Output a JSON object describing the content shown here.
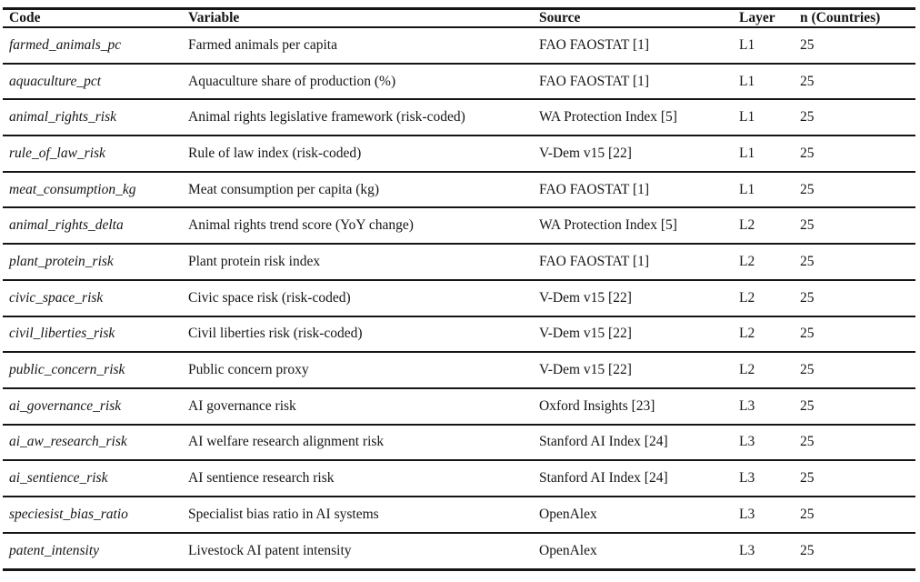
{
  "table": {
    "columns": [
      "Code",
      "Variable",
      "Source",
      "Layer",
      "n (Countries)"
    ],
    "rows": [
      {
        "code": "farmed_animals_pc",
        "variable": "Farmed animals per capita",
        "source": "FAO FAOSTAT [1]",
        "layer": "L1",
        "n": "25"
      },
      {
        "code": "aquaculture_pct",
        "variable": "Aquaculture share of production (%)",
        "source": "FAO FAOSTAT [1]",
        "layer": "L1",
        "n": "25"
      },
      {
        "code": "animal_rights_risk",
        "variable": "Animal rights legislative framework (risk-coded)",
        "source": "WA Protection Index [5]",
        "layer": "L1",
        "n": "25"
      },
      {
        "code": "rule_of_law_risk",
        "variable": "Rule of law index (risk-coded)",
        "source": "V-Dem v15 [22]",
        "layer": "L1",
        "n": "25"
      },
      {
        "code": "meat_consumption_kg",
        "variable": "Meat consumption per capita (kg)",
        "source": "FAO FAOSTAT [1]",
        "layer": "L1",
        "n": "25"
      },
      {
        "code": "animal_rights_delta",
        "variable": "Animal rights trend score (YoY change)",
        "source": "WA Protection Index [5]",
        "layer": "L2",
        "n": "25"
      },
      {
        "code": "plant_protein_risk",
        "variable": "Plant protein risk index",
        "source": "FAO FAOSTAT [1]",
        "layer": "L2",
        "n": "25"
      },
      {
        "code": "civic_space_risk",
        "variable": "Civic space risk (risk-coded)",
        "source": "V-Dem v15 [22]",
        "layer": "L2",
        "n": "25"
      },
      {
        "code": "civil_liberties_risk",
        "variable": "Civil liberties risk (risk-coded)",
        "source": "V-Dem v15 [22]",
        "layer": "L2",
        "n": "25"
      },
      {
        "code": "public_concern_risk",
        "variable": "Public concern proxy",
        "source": "V-Dem v15 [22]",
        "layer": "L2",
        "n": "25"
      },
      {
        "code": "ai_governance_risk",
        "variable": "AI governance risk",
        "source": "Oxford Insights [23]",
        "layer": "L3",
        "n": "25"
      },
      {
        "code": "ai_aw_research_risk",
        "variable": "AI welfare research alignment risk",
        "source": "Stanford AI Index [24]",
        "layer": "L3",
        "n": "25"
      },
      {
        "code": "ai_sentience_risk",
        "variable": "AI sentience research risk",
        "source": "Stanford AI Index [24]",
        "layer": "L3",
        "n": "25"
      },
      {
        "code": "speciesist_bias_ratio",
        "variable": "Specialist bias ratio in AI systems",
        "source": "OpenAlex",
        "layer": "L3",
        "n": "25"
      },
      {
        "code": "patent_intensity",
        "variable": "Livestock AI patent intensity",
        "source": "OpenAlex",
        "layer": "L3",
        "n": "25"
      }
    ]
  }
}
